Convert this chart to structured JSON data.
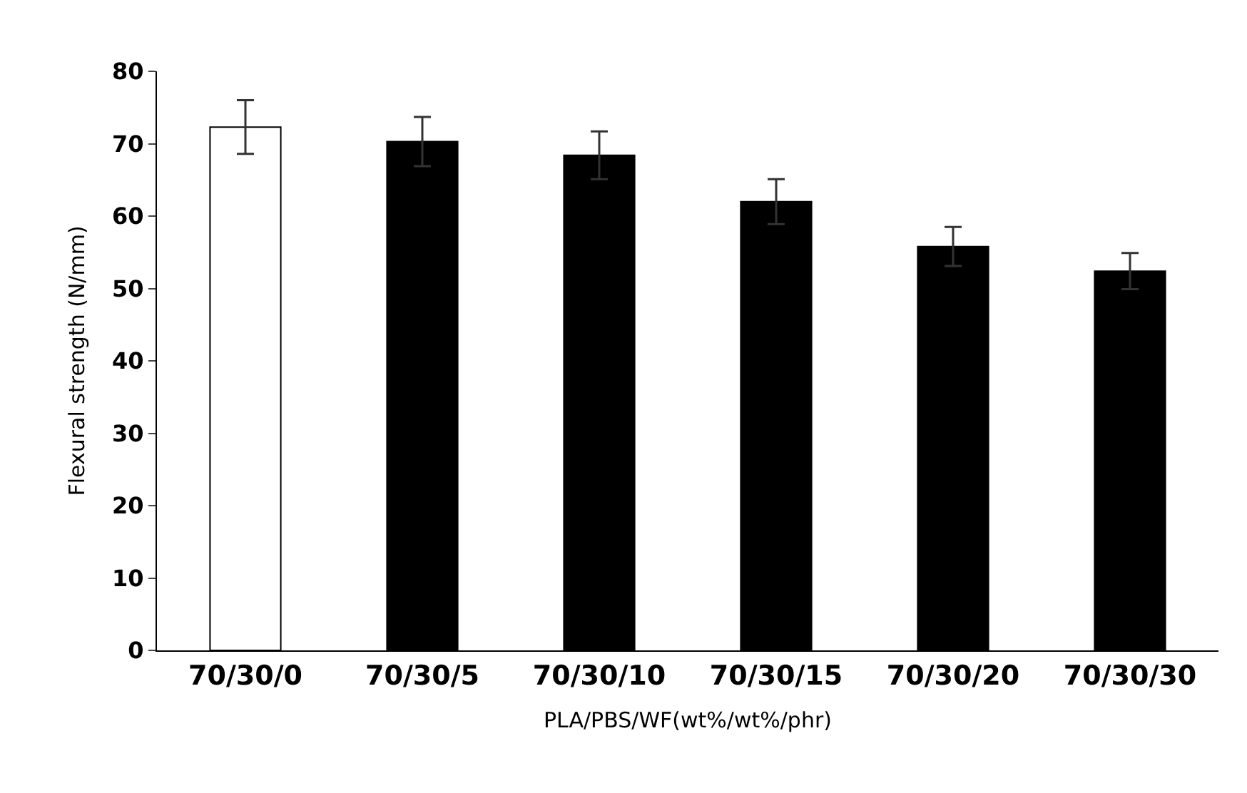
{
  "chart_data": {
    "type": "bar",
    "xlabel": "PLA/PBS/WF(wt%/wt%/phr)",
    "ylabel": "Flexural strength (N/mm)",
    "categories": [
      "70/30/0",
      "70/30/5",
      "70/30/10",
      "70/30/15",
      "70/30/20",
      "70/30/30"
    ],
    "values": [
      72.3,
      70.3,
      68.4,
      62.0,
      55.8,
      52.4
    ],
    "errors": [
      3.7,
      3.4,
      3.3,
      3.1,
      2.7,
      2.5
    ],
    "colors": [
      "#ffffff",
      "#000000",
      "#000000",
      "#000000",
      "#000000",
      "#000000"
    ],
    "ylim": [
      0,
      80
    ],
    "yticks": [
      0,
      10,
      20,
      30,
      40,
      50,
      60,
      70,
      80
    ]
  }
}
